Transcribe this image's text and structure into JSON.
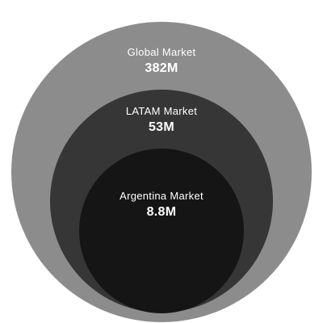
{
  "circles": [
    {
      "name": "Global Market",
      "value": "382M",
      "color": "#8c8c8c"
    },
    {
      "name": "LATAM Market",
      "value": "53M",
      "color": "#363636"
    },
    {
      "name": "Argentina Market",
      "value": "8.8M",
      "color": "#151515"
    }
  ]
}
